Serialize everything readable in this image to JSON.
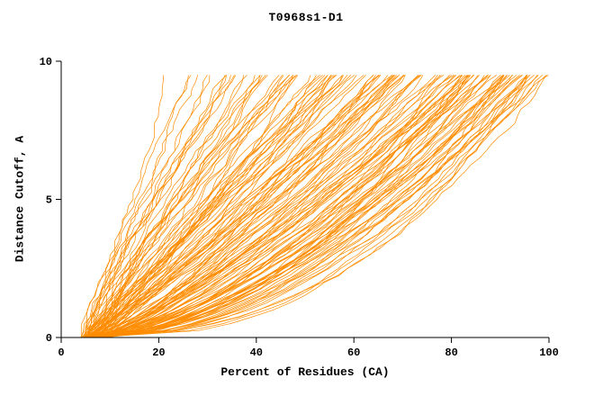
{
  "chart_data": {
    "type": "line",
    "title": "T0968s1-D1",
    "xlabel": "Percent of Residues (CA)",
    "ylabel": "Distance Cutoff, A",
    "xlim": [
      0,
      100
    ],
    "ylim": [
      0,
      10
    ],
    "x_ticks": [
      0,
      20,
      40,
      60,
      80,
      100
    ],
    "y_ticks": [
      0,
      5,
      10
    ],
    "grid": false,
    "legend": "none",
    "series_color": "#ff8c00",
    "axis_color": "#000000",
    "n_series": 140,
    "curve_y_max": 9.5,
    "curve_x_start_range": [
      4,
      9
    ],
    "curve_x_end_range": [
      22,
      100
    ],
    "curve_shape_exponent_range": [
      0.3,
      1.2
    ],
    "description": "Family of ~140 overlapping prediction-accuracy curves for target T0968s1-D1: each orange curve shows the percent of CA residues (x) fitting under a given distance cutoff in Angstroms (y). Curves start near x=4-9% at cutoff 0 and fan out, spanning roughly x=22% to x=100% at the top cutoff of ~9.5 A."
  }
}
